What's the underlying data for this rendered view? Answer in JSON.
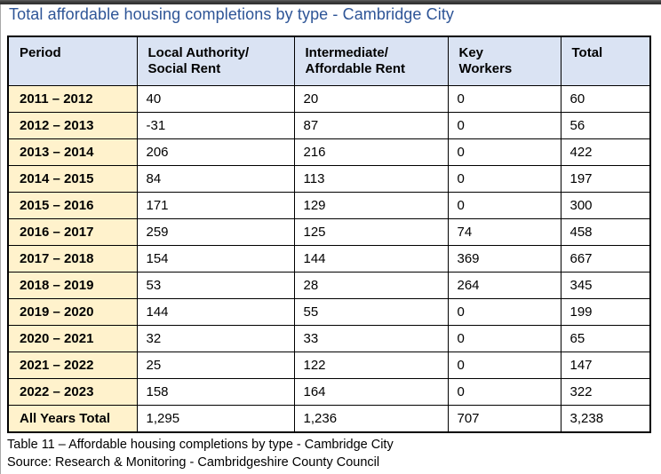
{
  "page": {
    "title": "Total affordable housing completions by type - Cambridge City",
    "caption": "Table 11 – Affordable housing completions by type - Cambridge City",
    "source": "Source: Research & Monitoring - Cambridgeshire County Council"
  },
  "colors": {
    "title_blue": "#2e5597",
    "header_bg": "#dae3f3",
    "period_bg": "#fff2cc",
    "border_color": "#000000",
    "chrome_bar": "#3c3c3c"
  },
  "chart_data": {
    "type": "table",
    "title": "Total affordable housing completions by type - Cambridge City",
    "columns": [
      "Period",
      "Local Authority/\nSocial Rent",
      "Intermediate/\nAffordable Rent",
      "Key\nWorkers",
      "Total"
    ],
    "rows": [
      [
        "2011 – 2012",
        "40",
        "20",
        "0",
        "60"
      ],
      [
        "2012 – 2013",
        "-31",
        "87",
        "0",
        "56"
      ],
      [
        "2013 – 2014",
        "206",
        "216",
        "0",
        "422"
      ],
      [
        "2014 – 2015",
        "84",
        "113",
        "0",
        "197"
      ],
      [
        "2015 – 2016",
        "171",
        "129",
        "0",
        "300"
      ],
      [
        "2016 – 2017",
        "259",
        "125",
        "74",
        "458"
      ],
      [
        "2017 – 2018",
        "154",
        "144",
        "369",
        "667"
      ],
      [
        "2018 – 2019",
        "53",
        "28",
        "264",
        "345"
      ],
      [
        "2019 – 2020",
        "144",
        "55",
        "0",
        "199"
      ],
      [
        "2020 – 2021",
        "32",
        "33",
        "0",
        "65"
      ],
      [
        "2021 – 2022",
        "25",
        "122",
        "0",
        "147"
      ],
      [
        "2022 – 2023",
        "158",
        "164",
        "0",
        "322"
      ],
      [
        "All Years Total",
        "1,295",
        "1,236",
        "707",
        "3,238"
      ]
    ]
  }
}
